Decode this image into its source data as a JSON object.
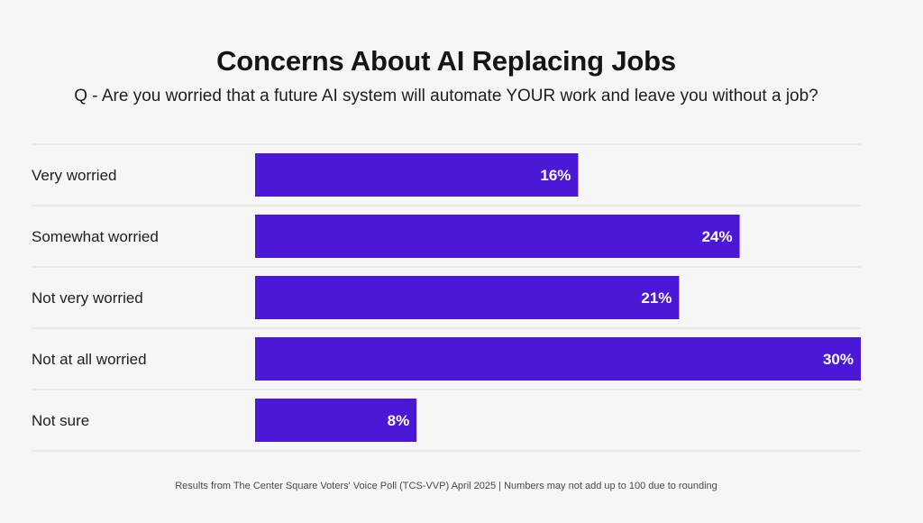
{
  "chart_data": {
    "type": "bar",
    "orientation": "horizontal",
    "title": "Concerns About AI Replacing Jobs",
    "subtitle": "Q - Are you worried that a future AI system will automate YOUR work and leave you without a job?",
    "categories": [
      "Very worried",
      "Somewhat worried",
      "Not very worried",
      "Not at all worried",
      "Not sure"
    ],
    "values": [
      16,
      24,
      21,
      30,
      8
    ],
    "value_labels": [
      "16%",
      "24%",
      "21%",
      "30%",
      "8%"
    ],
    "xlim": [
      0,
      30
    ],
    "grid": false,
    "legend": "none",
    "bar_color": "#4b18d6",
    "footnote": "Results from The Center Square Voters' Voice Poll (TCS-VVP) April 2025 | Numbers may not add up to 100 due to rounding"
  }
}
